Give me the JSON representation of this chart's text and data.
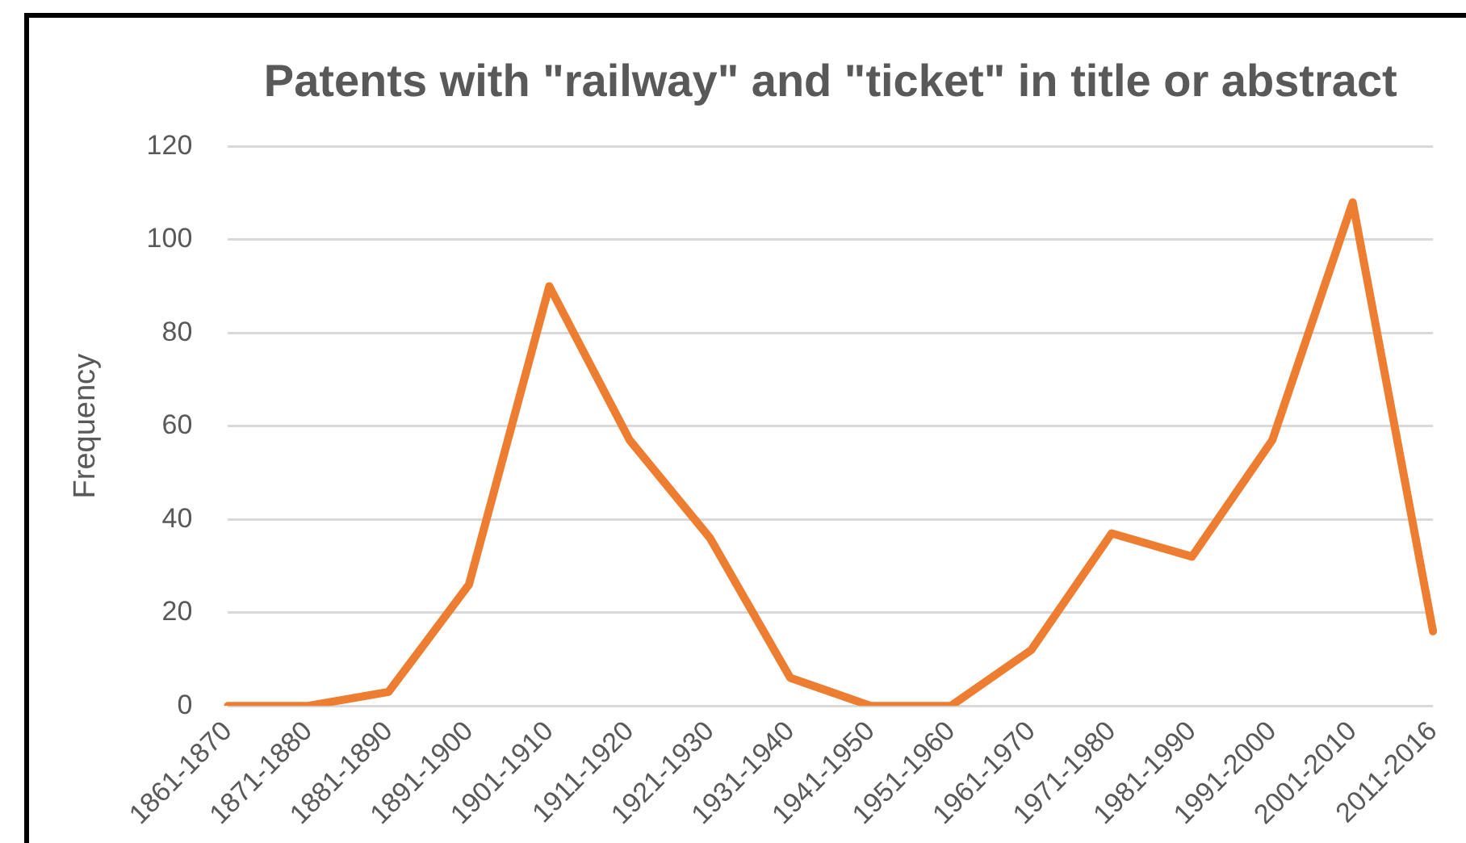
{
  "chart_data": {
    "type": "line",
    "title": "Patents with \"railway\" and \"ticket\" in title or abstract",
    "ylabel": "Frequency",
    "categories": [
      "1861-1870",
      "1871-1880",
      "1881-1890",
      "1891-1900",
      "1901-1910",
      "1911-1920",
      "1921-1930",
      "1931-1940",
      "1941-1950",
      "1951-1960",
      "1961-1970",
      "1971-1980",
      "1981-1990",
      "1991-2000",
      "2001-2010",
      "2011-2016"
    ],
    "series": [
      {
        "color": "#ed7d31",
        "values": [
          0,
          0,
          3,
          26,
          90,
          57,
          36,
          6,
          0,
          0,
          12,
          37,
          32,
          57,
          108,
          16
        ]
      }
    ],
    "ylim": [
      0,
      120
    ],
    "yticks": [
      0,
      20,
      40,
      60,
      80,
      100,
      120
    ],
    "grid": "y",
    "legend": false,
    "marker": "none",
    "line_style": "solid"
  }
}
